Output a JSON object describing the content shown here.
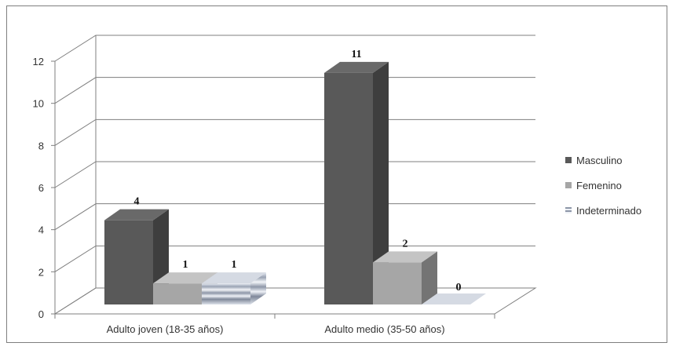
{
  "chart_data": {
    "type": "bar",
    "categories": [
      "Adulto joven (18-35 años)",
      "Adulto medio (35-50 años)"
    ],
    "series": [
      {
        "name": "Masculino",
        "values": [
          4,
          11
        ],
        "labels": [
          "4",
          "11"
        ],
        "color": "#595959"
      },
      {
        "name": "Femenino",
        "values": [
          1,
          2
        ],
        "labels": [
          "1",
          "2"
        ],
        "color": "#a6a6a6"
      },
      {
        "name": "Indeterminado",
        "values": [
          1,
          0
        ],
        "labels": [
          "1",
          "0"
        ],
        "color": "#b4bccb"
      }
    ],
    "yticks": [
      "0",
      "2",
      "4",
      "6",
      "8",
      "10",
      "12"
    ],
    "ylim": [
      0,
      12
    ],
    "grid": true,
    "legend": "right",
    "style": "3d-clustered-column"
  }
}
